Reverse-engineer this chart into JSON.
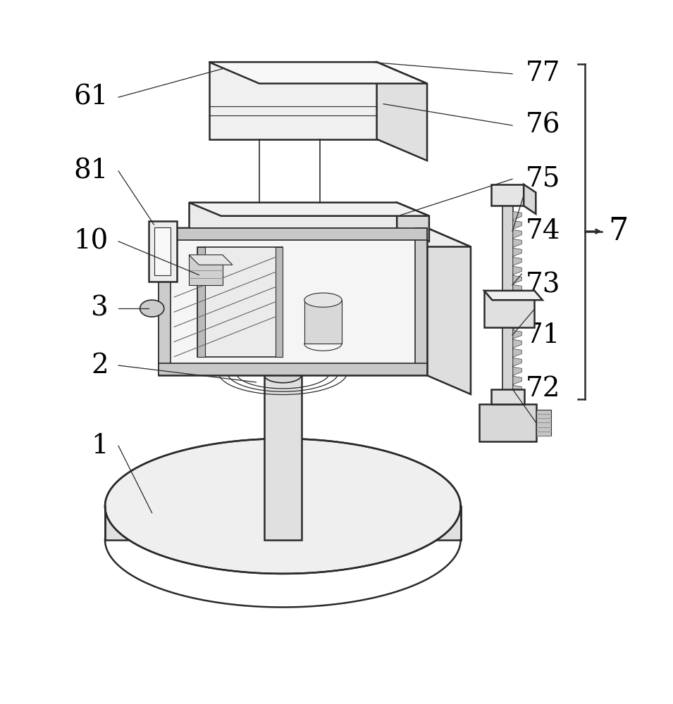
{
  "bg_color": "#ffffff",
  "line_color": "#2a2a2a",
  "line_width": 1.2,
  "label_fontsize": 28,
  "bracket_label_fontsize": 32,
  "figsize": [
    9.55,
    10.0
  ],
  "dpi": 100
}
